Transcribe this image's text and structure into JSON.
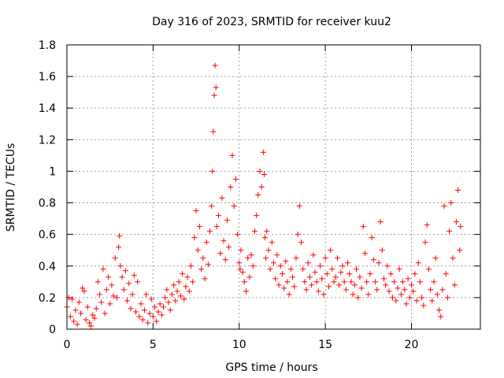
{
  "chart_data": {
    "type": "scatter",
    "title": "Day 316 of 2023, SRMTID for receiver kuu2",
    "xlabel": "GPS time / hours",
    "ylabel": "SRMTID / TECUs",
    "xlim": [
      0,
      24
    ],
    "ylim": [
      0,
      1.8
    ],
    "xticks": [
      0,
      5,
      10,
      15,
      20
    ],
    "xtick_labels": [
      "0",
      "5",
      "10",
      "15",
      "20"
    ],
    "yticks": [
      0,
      0.2,
      0.4,
      0.6,
      0.8,
      1,
      1.2,
      1.4,
      1.6,
      1.8
    ],
    "ytick_labels": [
      "0",
      "0.2",
      "0.4",
      "0.6",
      "0.8",
      "1",
      "1.2",
      "1.4",
      "1.6",
      "1.8"
    ],
    "grid": true,
    "marker": "+",
    "series": [
      {
        "name": "SRMTID",
        "color": "#ff0000",
        "x": [
          0.0,
          0.1,
          0.2,
          0.3,
          0.4,
          0.5,
          0.6,
          0.7,
          0.8,
          0.9,
          1.0,
          1.1,
          1.2,
          1.3,
          1.4,
          1.5,
          1.6,
          1.7,
          1.8,
          1.9,
          2.0,
          2.1,
          2.2,
          2.3,
          2.4,
          2.5,
          2.6,
          2.7,
          2.8,
          2.9,
          3.0,
          3.05,
          3.1,
          3.2,
          3.3,
          3.4,
          3.5,
          3.6,
          3.7,
          3.8,
          3.9,
          4.0,
          4.1,
          4.2,
          4.3,
          4.4,
          4.5,
          4.6,
          4.7,
          4.8,
          4.9,
          5.0,
          5.1,
          5.2,
          5.3,
          5.4,
          5.5,
          5.6,
          5.7,
          5.8,
          5.9,
          6.0,
          6.1,
          6.2,
          6.3,
          6.4,
          6.5,
          6.6,
          6.7,
          6.8,
          6.9,
          7.0,
          7.1,
          7.2,
          7.3,
          7.4,
          7.5,
          7.6,
          7.7,
          7.8,
          7.9,
          8.0,
          8.1,
          8.2,
          8.3,
          8.4,
          8.45,
          8.5,
          8.55,
          8.6,
          8.65,
          8.7,
          8.8,
          8.9,
          9.0,
          9.1,
          9.2,
          9.3,
          9.4,
          9.5,
          9.6,
          9.7,
          9.8,
          9.9,
          10.0,
          10.05,
          10.1,
          10.2,
          10.3,
          10.4,
          10.5,
          10.6,
          10.7,
          10.8,
          10.9,
          11.0,
          11.1,
          11.2,
          11.3,
          11.4,
          11.45,
          11.5,
          11.55,
          11.6,
          11.7,
          11.8,
          11.9,
          12.0,
          12.1,
          12.2,
          12.3,
          12.4,
          12.5,
          12.6,
          12.7,
          12.8,
          12.9,
          13.0,
          13.1,
          13.2,
          13.3,
          13.4,
          13.5,
          13.6,
          13.7,
          13.8,
          13.9,
          14.0,
          14.1,
          14.2,
          14.3,
          14.4,
          14.5,
          14.6,
          14.7,
          14.8,
          14.9,
          15.0,
          15.1,
          15.2,
          15.3,
          15.4,
          15.5,
          15.6,
          15.7,
          15.8,
          15.9,
          16.0,
          16.1,
          16.2,
          16.3,
          16.4,
          16.5,
          16.6,
          16.7,
          16.8,
          16.9,
          17.0,
          17.1,
          17.2,
          17.3,
          17.4,
          17.5,
          17.6,
          17.7,
          17.8,
          17.9,
          18.0,
          18.1,
          18.2,
          18.3,
          18.4,
          18.5,
          18.6,
          18.7,
          18.8,
          18.9,
          19.0,
          19.1,
          19.2,
          19.3,
          19.4,
          19.5,
          19.6,
          19.7,
          19.8,
          19.9,
          20.0,
          20.1,
          20.2,
          20.3,
          20.4,
          20.5,
          20.6,
          20.7,
          20.8,
          20.9,
          21.0,
          21.1,
          21.2,
          21.3,
          21.4,
          21.5,
          21.6,
          21.7,
          21.8,
          21.9,
          22.0,
          22.1,
          22.2,
          22.3,
          22.4,
          22.5,
          22.6,
          22.7,
          22.8,
          22.85
        ],
        "y": [
          0.14,
          0.2,
          0.08,
          0.19,
          0.05,
          0.12,
          0.03,
          0.17,
          0.1,
          0.26,
          0.24,
          0.06,
          0.14,
          0.04,
          0.02,
          0.09,
          0.07,
          0.13,
          0.3,
          0.22,
          0.17,
          0.38,
          0.1,
          0.25,
          0.33,
          0.16,
          0.28,
          0.21,
          0.45,
          0.2,
          0.52,
          0.59,
          0.4,
          0.33,
          0.25,
          0.37,
          0.18,
          0.29,
          0.13,
          0.22,
          0.34,
          0.11,
          0.3,
          0.08,
          0.16,
          0.06,
          0.12,
          0.22,
          0.04,
          0.1,
          0.19,
          0.08,
          0.14,
          0.05,
          0.11,
          0.16,
          0.09,
          0.14,
          0.2,
          0.25,
          0.17,
          0.12,
          0.22,
          0.28,
          0.18,
          0.24,
          0.3,
          0.21,
          0.35,
          0.19,
          0.27,
          0.33,
          0.24,
          0.4,
          0.3,
          0.58,
          0.75,
          0.5,
          0.65,
          0.38,
          0.45,
          0.32,
          0.55,
          0.41,
          0.62,
          0.78,
          1.0,
          1.25,
          1.48,
          1.67,
          1.53,
          0.65,
          0.72,
          0.48,
          0.83,
          0.56,
          0.44,
          0.69,
          0.52,
          0.9,
          1.1,
          0.78,
          0.95,
          0.6,
          0.42,
          0.38,
          0.5,
          0.36,
          0.3,
          0.24,
          0.45,
          0.33,
          0.47,
          0.4,
          0.62,
          0.72,
          0.85,
          1.0,
          0.9,
          1.12,
          0.98,
          0.58,
          0.45,
          0.62,
          0.5,
          0.38,
          0.55,
          0.42,
          0.32,
          0.47,
          0.28,
          0.4,
          0.35,
          0.26,
          0.43,
          0.3,
          0.22,
          0.38,
          0.33,
          0.27,
          0.45,
          0.6,
          0.78,
          0.55,
          0.38,
          0.3,
          0.25,
          0.42,
          0.33,
          0.28,
          0.47,
          0.36,
          0.3,
          0.24,
          0.4,
          0.32,
          0.22,
          0.45,
          0.35,
          0.27,
          0.5,
          0.38,
          0.3,
          0.33,
          0.45,
          0.28,
          0.36,
          0.4,
          0.3,
          0.25,
          0.42,
          0.35,
          0.3,
          0.22,
          0.28,
          0.38,
          0.2,
          0.33,
          0.26,
          0.65,
          0.48,
          0.3,
          0.22,
          0.35,
          0.58,
          0.44,
          0.3,
          0.25,
          0.42,
          0.68,
          0.5,
          0.32,
          0.28,
          0.4,
          0.24,
          0.35,
          0.2,
          0.3,
          0.18,
          0.26,
          0.38,
          0.22,
          0.3,
          0.25,
          0.16,
          0.32,
          0.2,
          0.28,
          0.24,
          0.35,
          0.18,
          0.42,
          0.3,
          0.2,
          0.15,
          0.55,
          0.66,
          0.38,
          0.25,
          0.18,
          0.3,
          0.45,
          0.22,
          0.12,
          0.08,
          0.25,
          0.78,
          0.35,
          0.2,
          0.62,
          0.8,
          0.45,
          0.28,
          0.68,
          0.88,
          0.5,
          0.65
        ]
      }
    ]
  }
}
